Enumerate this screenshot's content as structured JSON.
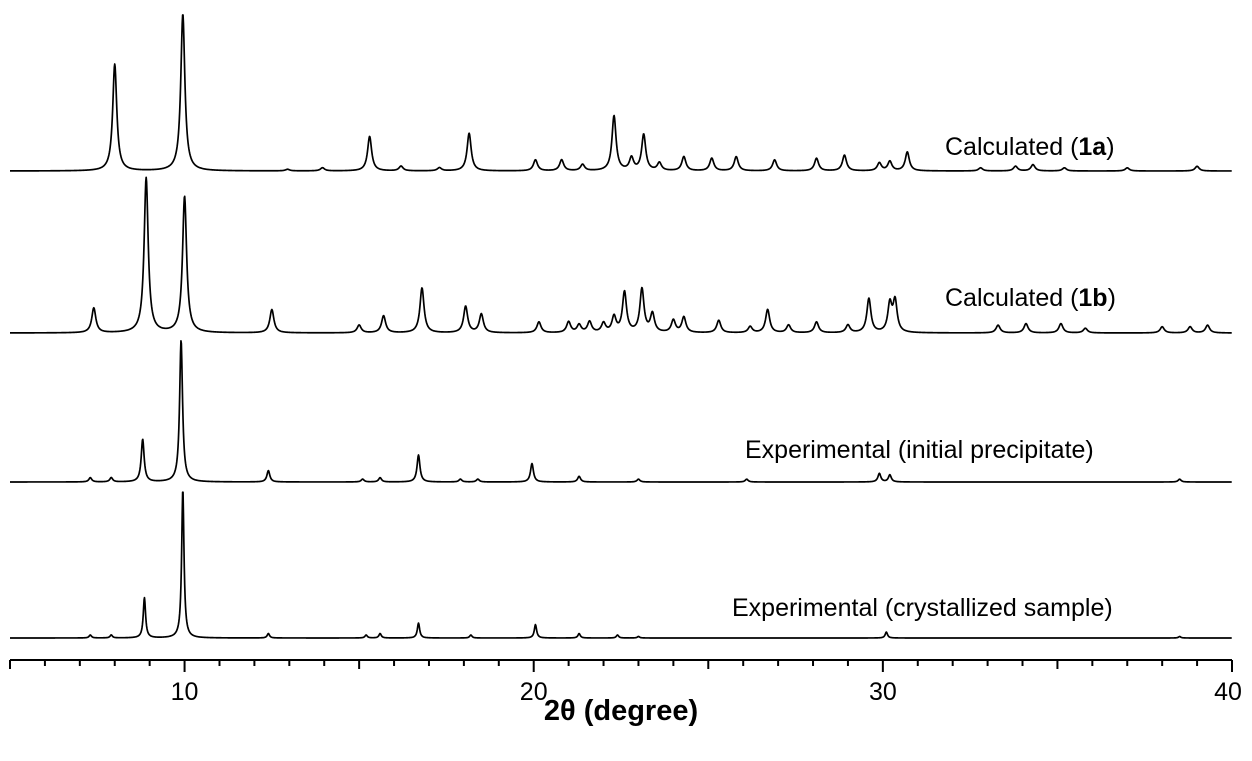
{
  "chart_data": {
    "type": "line",
    "xlabel": "2θ (degree)",
    "xlim": [
      5,
      40
    ],
    "xticks": [
      10,
      20,
      30,
      40
    ],
    "yaxis": "stacked, offset traces, no y axis shown",
    "grid": false,
    "series": [
      {
        "label_prefix": "Calculated (",
        "label_bold": "1a",
        "label_suffix": ")",
        "peaks": [
          {
            "x": 8.0,
            "h": 0.68
          },
          {
            "x": 9.95,
            "h": 1.0
          },
          {
            "x": 12.95,
            "h": 0.01
          },
          {
            "x": 13.95,
            "h": 0.02
          },
          {
            "x": 15.3,
            "h": 0.22
          },
          {
            "x": 16.2,
            "h": 0.03
          },
          {
            "x": 17.3,
            "h": 0.02
          },
          {
            "x": 18.15,
            "h": 0.24
          },
          {
            "x": 20.05,
            "h": 0.07
          },
          {
            "x": 20.8,
            "h": 0.07
          },
          {
            "x": 21.4,
            "h": 0.04
          },
          {
            "x": 22.3,
            "h": 0.35
          },
          {
            "x": 22.8,
            "h": 0.08
          },
          {
            "x": 23.15,
            "h": 0.23
          },
          {
            "x": 23.6,
            "h": 0.05
          },
          {
            "x": 24.3,
            "h": 0.09
          },
          {
            "x": 25.1,
            "h": 0.08
          },
          {
            "x": 25.8,
            "h": 0.09
          },
          {
            "x": 26.9,
            "h": 0.07
          },
          {
            "x": 28.1,
            "h": 0.08
          },
          {
            "x": 28.9,
            "h": 0.1
          },
          {
            "x": 29.9,
            "h": 0.05
          },
          {
            "x": 30.2,
            "h": 0.06
          },
          {
            "x": 30.7,
            "h": 0.12
          },
          {
            "x": 32.8,
            "h": 0.02
          },
          {
            "x": 33.8,
            "h": 0.03
          },
          {
            "x": 34.3,
            "h": 0.04
          },
          {
            "x": 35.2,
            "h": 0.02
          },
          {
            "x": 37.0,
            "h": 0.02
          },
          {
            "x": 39.0,
            "h": 0.03
          }
        ]
      },
      {
        "label_prefix": "Calculated (",
        "label_bold": "1b",
        "label_suffix": ")",
        "peaks": [
          {
            "x": 7.4,
            "h": 0.16
          },
          {
            "x": 8.9,
            "h": 1.0
          },
          {
            "x": 10.0,
            "h": 0.88
          },
          {
            "x": 12.5,
            "h": 0.15
          },
          {
            "x": 15.0,
            "h": 0.05
          },
          {
            "x": 15.7,
            "h": 0.11
          },
          {
            "x": 16.8,
            "h": 0.29
          },
          {
            "x": 18.05,
            "h": 0.17
          },
          {
            "x": 18.5,
            "h": 0.12
          },
          {
            "x": 20.15,
            "h": 0.07
          },
          {
            "x": 21.0,
            "h": 0.07
          },
          {
            "x": 21.3,
            "h": 0.05
          },
          {
            "x": 21.6,
            "h": 0.07
          },
          {
            "x": 22.0,
            "h": 0.06
          },
          {
            "x": 22.3,
            "h": 0.1
          },
          {
            "x": 22.6,
            "h": 0.26
          },
          {
            "x": 23.1,
            "h": 0.28
          },
          {
            "x": 23.4,
            "h": 0.12
          },
          {
            "x": 24.0,
            "h": 0.08
          },
          {
            "x": 24.3,
            "h": 0.1
          },
          {
            "x": 25.3,
            "h": 0.08
          },
          {
            "x": 26.2,
            "h": 0.04
          },
          {
            "x": 26.7,
            "h": 0.15
          },
          {
            "x": 27.3,
            "h": 0.05
          },
          {
            "x": 28.1,
            "h": 0.07
          },
          {
            "x": 29.0,
            "h": 0.05
          },
          {
            "x": 29.6,
            "h": 0.22
          },
          {
            "x": 30.2,
            "h": 0.18
          },
          {
            "x": 30.35,
            "h": 0.2
          },
          {
            "x": 33.3,
            "h": 0.05
          },
          {
            "x": 34.1,
            "h": 0.06
          },
          {
            "x": 35.1,
            "h": 0.06
          },
          {
            "x": 35.8,
            "h": 0.03
          },
          {
            "x": 38.0,
            "h": 0.04
          },
          {
            "x": 38.8,
            "h": 0.04
          },
          {
            "x": 39.3,
            "h": 0.05
          }
        ]
      },
      {
        "label": "Experimental (initial precipitate)",
        "peaks": [
          {
            "x": 7.3,
            "h": 0.03
          },
          {
            "x": 7.9,
            "h": 0.03
          },
          {
            "x": 8.8,
            "h": 0.3
          },
          {
            "x": 9.9,
            "h": 1.0
          },
          {
            "x": 12.4,
            "h": 0.08
          },
          {
            "x": 15.1,
            "h": 0.02
          },
          {
            "x": 15.6,
            "h": 0.03
          },
          {
            "x": 16.7,
            "h": 0.19
          },
          {
            "x": 17.9,
            "h": 0.02
          },
          {
            "x": 18.4,
            "h": 0.02
          },
          {
            "x": 19.95,
            "h": 0.13
          },
          {
            "x": 21.3,
            "h": 0.04
          },
          {
            "x": 23.0,
            "h": 0.02
          },
          {
            "x": 26.1,
            "h": 0.02
          },
          {
            "x": 29.9,
            "h": 0.06
          },
          {
            "x": 30.2,
            "h": 0.05
          },
          {
            "x": 38.5,
            "h": 0.02
          }
        ]
      },
      {
        "label": "Experimental (crystallized sample)",
        "peaks": [
          {
            "x": 7.3,
            "h": 0.02
          },
          {
            "x": 7.9,
            "h": 0.02
          },
          {
            "x": 8.85,
            "h": 0.27
          },
          {
            "x": 9.95,
            "h": 1.0
          },
          {
            "x": 12.4,
            "h": 0.03
          },
          {
            "x": 15.2,
            "h": 0.02
          },
          {
            "x": 15.6,
            "h": 0.03
          },
          {
            "x": 16.7,
            "h": 0.1
          },
          {
            "x": 18.2,
            "h": 0.02
          },
          {
            "x": 20.05,
            "h": 0.09
          },
          {
            "x": 21.3,
            "h": 0.03
          },
          {
            "x": 22.4,
            "h": 0.02
          },
          {
            "x": 23.0,
            "h": 0.01
          },
          {
            "x": 30.1,
            "h": 0.04
          },
          {
            "x": 38.5,
            "h": 0.01
          }
        ]
      }
    ]
  }
}
